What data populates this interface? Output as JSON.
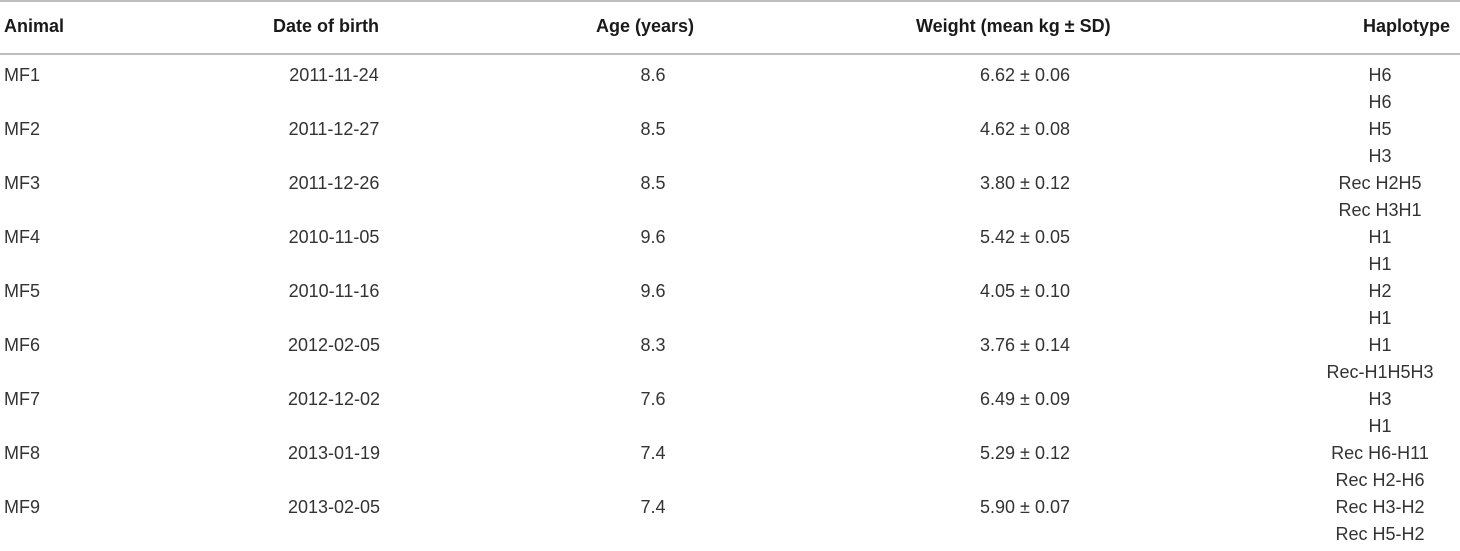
{
  "table": {
    "headers": {
      "animal": "Animal",
      "dob": "Date of birth",
      "age": "Age (years)",
      "weight": "Weight (mean kg ± SD)",
      "haplotype": "Haplotype"
    },
    "rows": [
      {
        "animal": "MF1",
        "dob": "2011-11-24",
        "age": "8.6",
        "weight": "6.62 ± 0.06",
        "hap1": "H6",
        "hap2": "H6"
      },
      {
        "animal": "MF2",
        "dob": "2011-12-27",
        "age": "8.5",
        "weight": "4.62 ± 0.08",
        "hap1": "H5",
        "hap2": "H3"
      },
      {
        "animal": "MF3",
        "dob": "2011-12-26",
        "age": "8.5",
        "weight": "3.80 ± 0.12",
        "hap1": "Rec H2H5",
        "hap2": "Rec H3H1"
      },
      {
        "animal": "MF4",
        "dob": "2010-11-05",
        "age": "9.6",
        "weight": "5.42 ± 0.05",
        "hap1": "H1",
        "hap2": "H1"
      },
      {
        "animal": "MF5",
        "dob": "2010-11-16",
        "age": "9.6",
        "weight": "4.05 ± 0.10",
        "hap1": "H2",
        "hap2": "H1"
      },
      {
        "animal": "MF6",
        "dob": "2012-02-05",
        "age": "8.3",
        "weight": "3.76 ± 0.14",
        "hap1": "H1",
        "hap2": "Rec-H1H5H3"
      },
      {
        "animal": "MF7",
        "dob": "2012-12-02",
        "age": "7.6",
        "weight": "6.49 ± 0.09",
        "hap1": "H3",
        "hap2": "H1"
      },
      {
        "animal": "MF8",
        "dob": "2013-01-19",
        "age": "7.4",
        "weight": "5.29 ± 0.12",
        "hap1": "Rec H6-H11",
        "hap2": "Rec H2-H6"
      },
      {
        "animal": "MF9",
        "dob": "2013-02-05",
        "age": "7.4",
        "weight": "5.90 ± 0.07",
        "hap1": "Rec H3-H2",
        "hap2": "Rec H5-H2"
      }
    ]
  }
}
